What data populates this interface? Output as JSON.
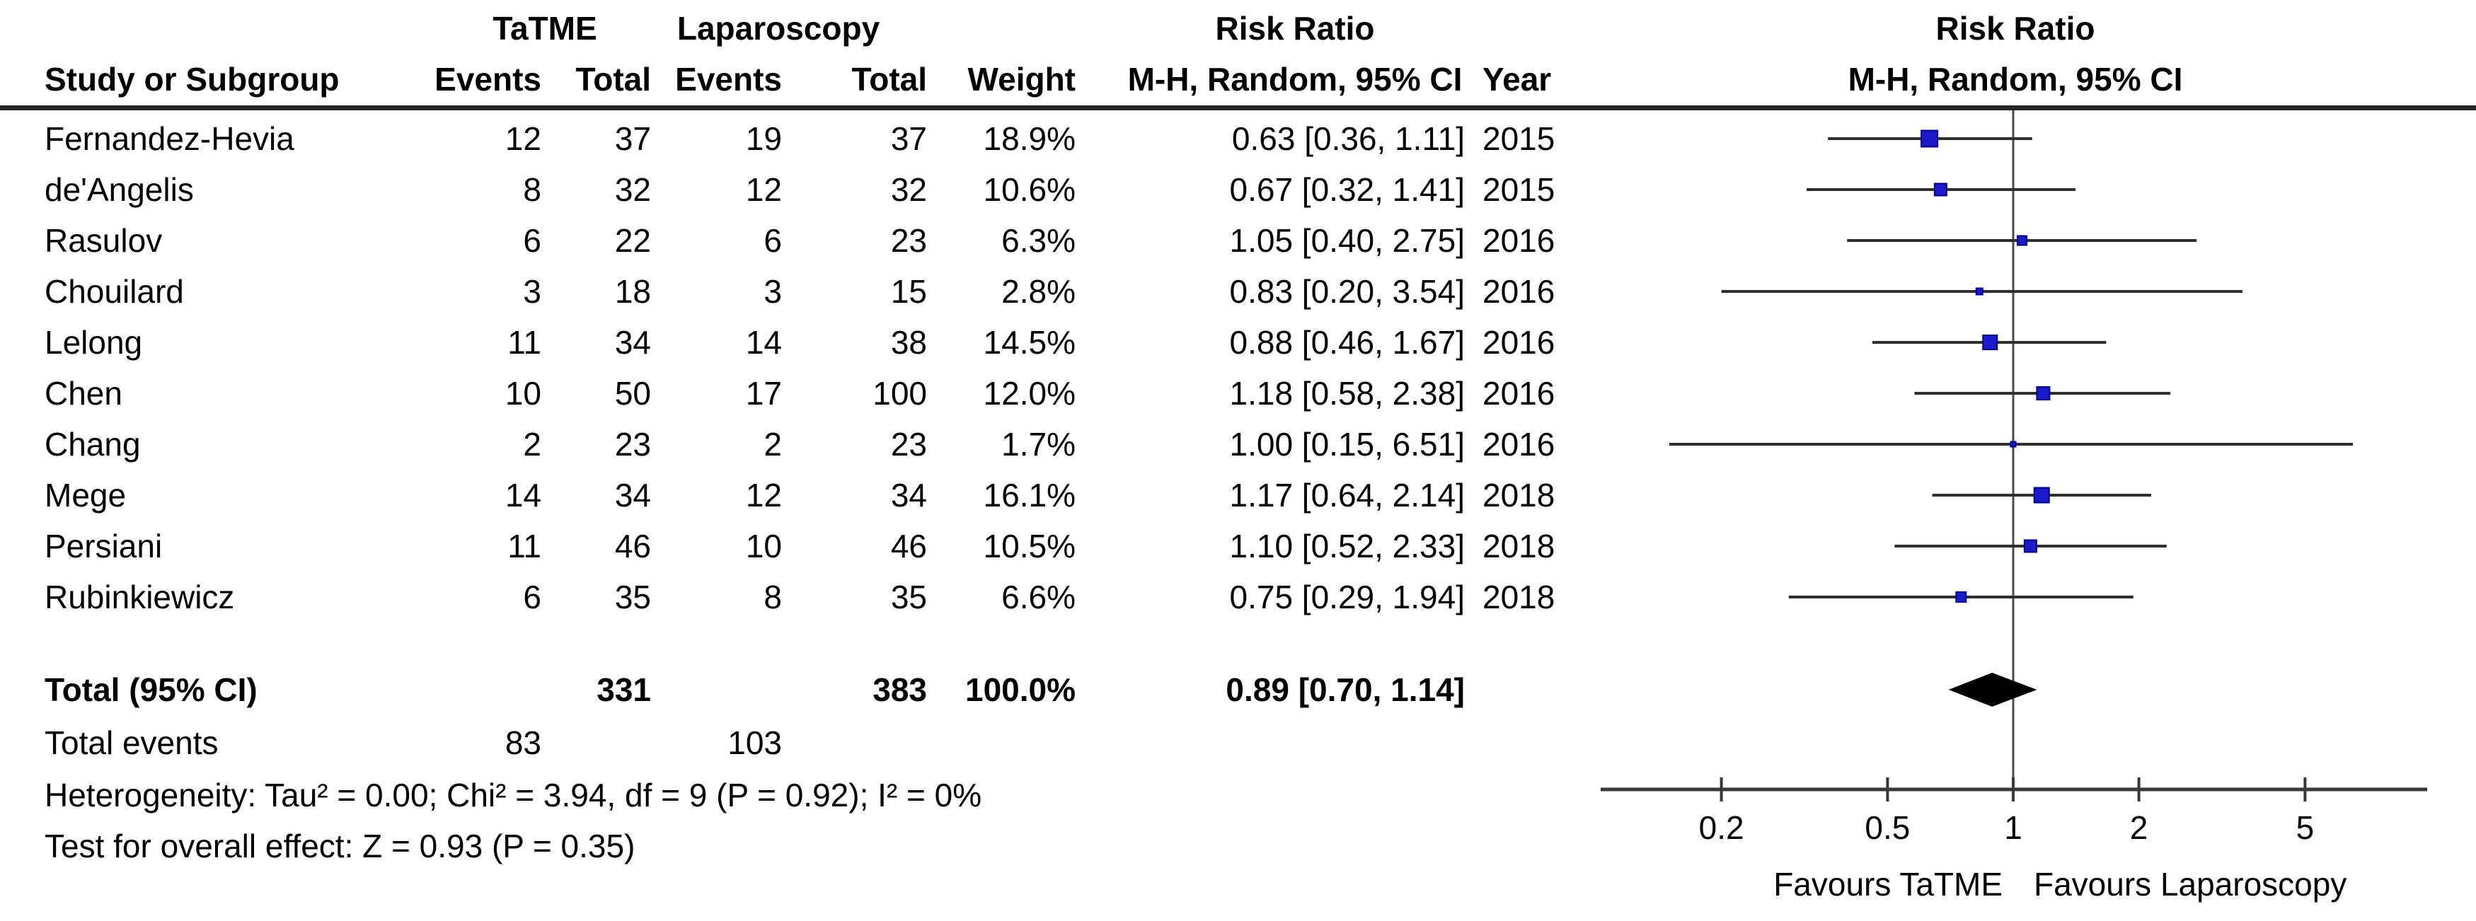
{
  "table": {
    "group_headers": {
      "tatme": "TaTME",
      "laparoscopy": "Laparoscopy",
      "risk_ratio_col": "Risk Ratio",
      "risk_ratio_plot": "Risk Ratio"
    },
    "columns": {
      "study": "Study or Subgroup",
      "events1": "Events",
      "total1": "Total",
      "events2": "Events",
      "total2": "Total",
      "weight": "Weight",
      "mh_ci": "M-H, Random, 95% CI",
      "year": "Year",
      "mh_ci_plot": "M-H, Random, 95% CI"
    },
    "rows": [
      {
        "study": "Fernandez-Hevia",
        "e1": "12",
        "t1": "37",
        "e2": "19",
        "t2": "37",
        "weight": "18.9%",
        "rr": "0.63 [0.36, 1.11]",
        "year": "2015"
      },
      {
        "study": "de'Angelis",
        "e1": "8",
        "t1": "32",
        "e2": "12",
        "t2": "32",
        "weight": "10.6%",
        "rr": "0.67 [0.32, 1.41]",
        "year": "2015"
      },
      {
        "study": "Rasulov",
        "e1": "6",
        "t1": "22",
        "e2": "6",
        "t2": "23",
        "weight": "6.3%",
        "rr": "1.05 [0.40, 2.75]",
        "year": "2016"
      },
      {
        "study": "Chouilard",
        "e1": "3",
        "t1": "18",
        "e2": "3",
        "t2": "15",
        "weight": "2.8%",
        "rr": "0.83 [0.20, 3.54]",
        "year": "2016"
      },
      {
        "study": "Lelong",
        "e1": "11",
        "t1": "34",
        "e2": "14",
        "t2": "38",
        "weight": "14.5%",
        "rr": "0.88 [0.46, 1.67]",
        "year": "2016"
      },
      {
        "study": "Chen",
        "e1": "10",
        "t1": "50",
        "e2": "17",
        "t2": "100",
        "weight": "12.0%",
        "rr": "1.18 [0.58, 2.38]",
        "year": "2016"
      },
      {
        "study": "Chang",
        "e1": "2",
        "t1": "23",
        "e2": "2",
        "t2": "23",
        "weight": "1.7%",
        "rr": "1.00 [0.15, 6.51]",
        "year": "2016"
      },
      {
        "study": "Mege",
        "e1": "14",
        "t1": "34",
        "e2": "12",
        "t2": "34",
        "weight": "16.1%",
        "rr": "1.17 [0.64, 2.14]",
        "year": "2018"
      },
      {
        "study": "Persiani",
        "e1": "11",
        "t1": "46",
        "e2": "10",
        "t2": "46",
        "weight": "10.5%",
        "rr": "1.10 [0.52, 2.33]",
        "year": "2018"
      },
      {
        "study": "Rubinkiewicz",
        "e1": "6",
        "t1": "35",
        "e2": "8",
        "t2": "35",
        "weight": "6.6%",
        "rr": "0.75 [0.29, 1.94]",
        "year": "2018"
      }
    ],
    "totals": {
      "label": "Total (95% CI)",
      "t1": "331",
      "t2": "383",
      "weight": "100.0%",
      "rr": "0.89 [0.70, 1.14]"
    },
    "total_events": {
      "label": "Total events",
      "e1": "83",
      "e2": "103"
    },
    "footnotes": {
      "heterogeneity": "Heterogeneity: Tau² = 0.00; Chi² = 3.94, df = 9 (P = 0.92); I² = 0%",
      "overall_effect": "Test for overall effect: Z = 0.93 (P = 0.35)"
    }
  },
  "chart_data": {
    "type": "forest",
    "x_scale": "log10",
    "axis_ticks": [
      0.2,
      0.5,
      1,
      2,
      5
    ],
    "axis_range": [
      0.1,
      10
    ],
    "center_value": 1,
    "studies": [
      {
        "name": "Fernandez-Hevia",
        "rr": 0.63,
        "ci_low": 0.36,
        "ci_high": 1.11,
        "weight_pct": 18.9,
        "year": 2015
      },
      {
        "name": "de'Angelis",
        "rr": 0.67,
        "ci_low": 0.32,
        "ci_high": 1.41,
        "weight_pct": 10.6,
        "year": 2015
      },
      {
        "name": "Rasulov",
        "rr": 1.05,
        "ci_low": 0.4,
        "ci_high": 2.75,
        "weight_pct": 6.3,
        "year": 2016
      },
      {
        "name": "Chouilard",
        "rr": 0.83,
        "ci_low": 0.2,
        "ci_high": 3.54,
        "weight_pct": 2.8,
        "year": 2016
      },
      {
        "name": "Lelong",
        "rr": 0.88,
        "ci_low": 0.46,
        "ci_high": 1.67,
        "weight_pct": 14.5,
        "year": 2016
      },
      {
        "name": "Chen",
        "rr": 1.18,
        "ci_low": 0.58,
        "ci_high": 2.38,
        "weight_pct": 12.0,
        "year": 2016
      },
      {
        "name": "Chang",
        "rr": 1.0,
        "ci_low": 0.15,
        "ci_high": 6.51,
        "weight_pct": 1.7,
        "year": 2016
      },
      {
        "name": "Mege",
        "rr": 1.17,
        "ci_low": 0.64,
        "ci_high": 2.14,
        "weight_pct": 16.1,
        "year": 2018
      },
      {
        "name": "Persiani",
        "rr": 1.1,
        "ci_low": 0.52,
        "ci_high": 2.33,
        "weight_pct": 10.5,
        "year": 2018
      },
      {
        "name": "Rubinkiewicz",
        "rr": 0.75,
        "ci_low": 0.29,
        "ci_high": 1.94,
        "weight_pct": 6.6,
        "year": 2018
      }
    ],
    "total": {
      "rr": 0.89,
      "ci_low": 0.7,
      "ci_high": 1.14
    },
    "favours_left": "Favours TaTME",
    "favours_right": "Favours Laparoscopy",
    "colors": {
      "square_fill": "#1a1ac8",
      "square_stroke": "#000090",
      "ci_line": "#2e2e2e",
      "axis": "#383838",
      "center_line": "#4a4a4a",
      "diamond": "#000000"
    }
  }
}
